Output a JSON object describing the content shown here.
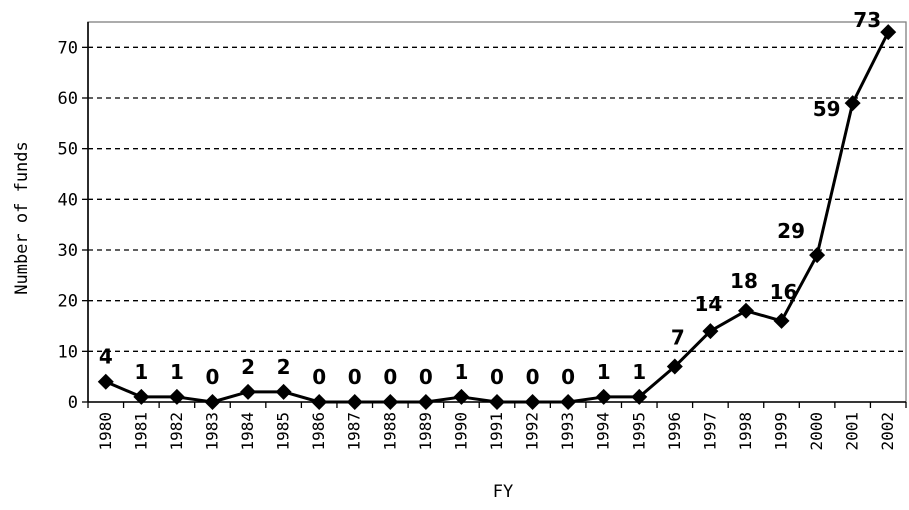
{
  "chart_data": {
    "type": "line",
    "xlabel": "FY",
    "ylabel": "Number of funds",
    "ylim": [
      0,
      75
    ],
    "yticks": [
      0,
      10,
      20,
      30,
      40,
      50,
      60,
      70
    ],
    "grid": "horizontal dashed",
    "categories": [
      "1980",
      "1981",
      "1982",
      "1983",
      "1984",
      "1985",
      "1986",
      "1987",
      "1988",
      "1989",
      "1990",
      "1991",
      "1992",
      "1993",
      "1994",
      "1995",
      "1996",
      "1997",
      "1998",
      "1999",
      "2000",
      "2001",
      "2002"
    ],
    "series": [
      {
        "values": [
          4,
          1,
          1,
          0,
          2,
          2,
          0,
          0,
          0,
          0,
          1,
          0,
          0,
          0,
          1,
          1,
          7,
          14,
          18,
          16,
          29,
          59,
          73
        ],
        "data_labels": [
          "4",
          "1",
          "1",
          "0",
          "2",
          "2",
          "0",
          "0",
          "0",
          "0",
          "1",
          "0",
          "0",
          "0",
          "1",
          "1",
          "7",
          "14",
          "18",
          "16",
          "29",
          "59",
          "73"
        ],
        "marker": "diamond",
        "color": "#000000"
      }
    ]
  }
}
